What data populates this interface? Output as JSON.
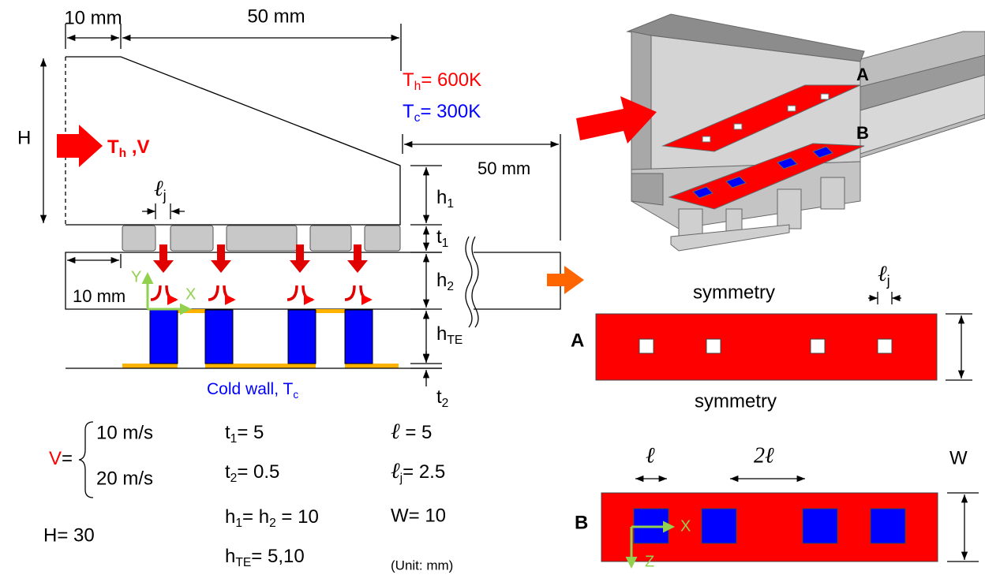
{
  "cross_section": {
    "top_dimensions": [
      "10 mm",
      "50 mm"
    ],
    "height_label": "H",
    "inlet": [
      "T",
      {
        "sub": "h"
      },
      " ,V"
    ],
    "jet_width": [
      "ℓ",
      {
        "sub": "j"
      }
    ],
    "hot_temperature": [
      "T",
      {
        "sub": "h"
      },
      "= 600K"
    ],
    "cold_temperature": [
      "T",
      {
        "sub": "c"
      },
      "= 300K"
    ],
    "outlet_length": "50 mm",
    "right_dimensions": [
      [
        "h",
        {
          "sub": "1"
        }
      ],
      [
        "t",
        {
          "sub": "1"
        }
      ],
      [
        "h",
        {
          "sub": "2"
        }
      ],
      [
        "h",
        {
          "sub": "TE"
        }
      ],
      [
        "t",
        {
          "sub": "2"
        }
      ]
    ],
    "offset_dimension": "10 mm",
    "axes": [
      "Y",
      "X"
    ],
    "cold_wall": [
      "Cold wall, ",
      "T",
      {
        "sub": "c"
      }
    ]
  },
  "isometric_view": {
    "plates": [
      "A",
      "B"
    ]
  },
  "plate_a": {
    "label": "A",
    "top_edge": "symmetry",
    "bottom_edge": "symmetry",
    "jet_width": [
      "ℓ",
      {
        "sub": "j"
      }
    ]
  },
  "plate_b": {
    "label": "B",
    "module_size": "ℓ",
    "spacing": "2ℓ",
    "width": "W",
    "axes": [
      "X",
      "Z"
    ]
  },
  "parameters": {
    "velocity_symbol": "V",
    "velocity_equals": "=",
    "velocity_options": [
      "10 m/s",
      "20 m/s"
    ],
    "height": "H= 30",
    "t1": [
      "t",
      {
        "sub": "1"
      },
      "= 5"
    ],
    "t2": [
      "t",
      {
        "sub": "2"
      },
      "= 0.5"
    ],
    "h1_h2": [
      "h",
      {
        "sub": "1"
      },
      "= h",
      {
        "sub": "2"
      },
      " = 10"
    ],
    "h_te": [
      "h",
      {
        "sub": "TE"
      },
      "= 5,10"
    ],
    "module_size": [
      "ℓ",
      " = 5"
    ],
    "jet_width": [
      "ℓ",
      {
        "sub": "j"
      },
      "= 2.5"
    ],
    "width": "W= 10",
    "unit": "(Unit: mm)"
  }
}
